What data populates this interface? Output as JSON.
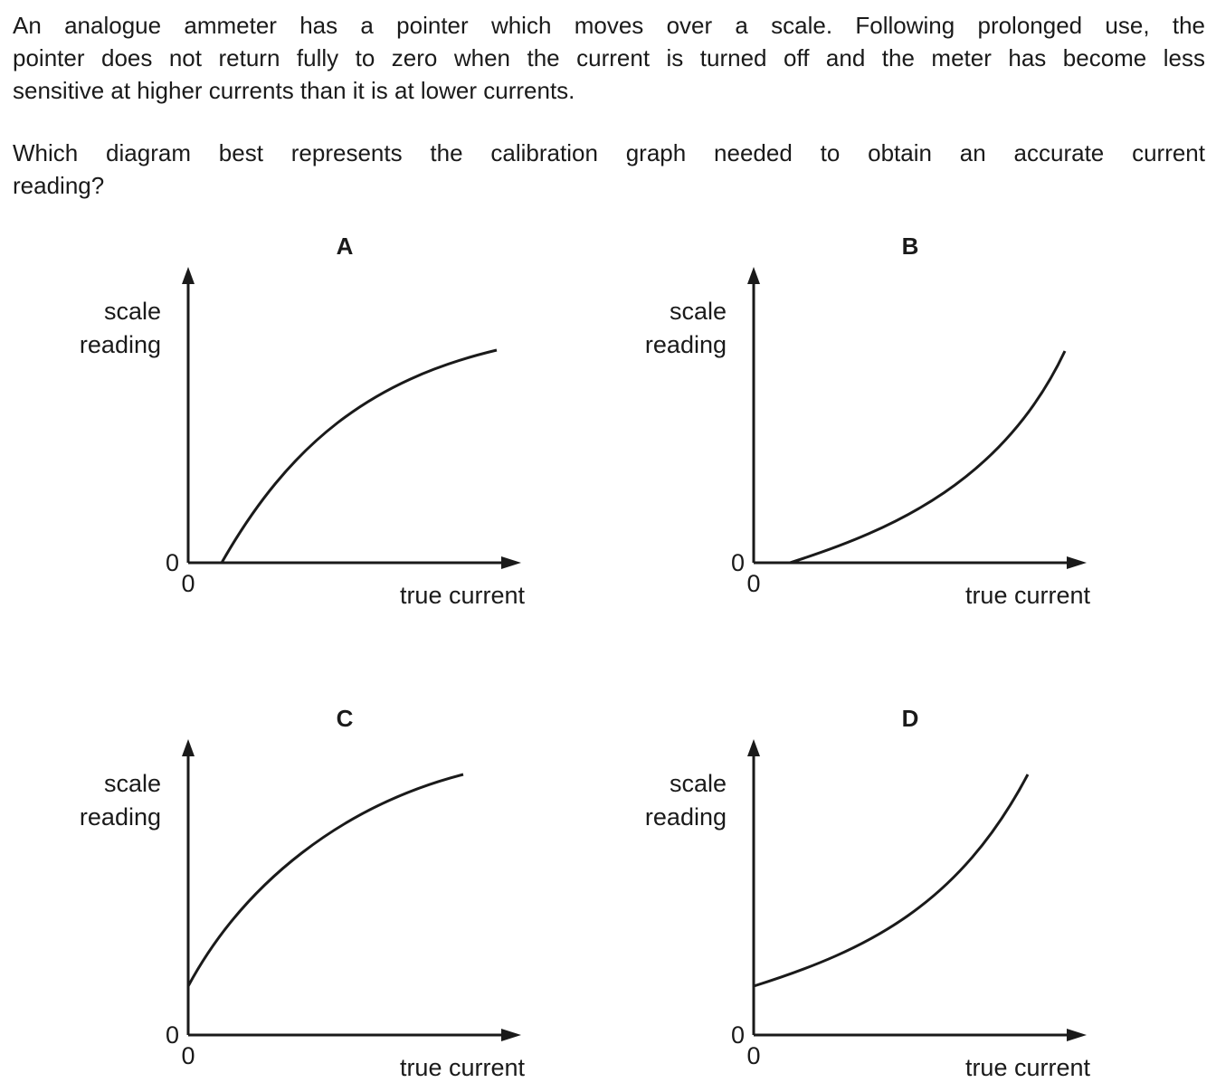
{
  "question": {
    "stem_lines": [
      "An analogue ammeter has a pointer which moves over a scale. Following prolonged use, the",
      "pointer does not return fully to zero when the current is turned off and the meter has become less",
      "sensitive at higher currents than it is at lower currents."
    ],
    "prompt_lines": [
      "Which diagram best represents the calibration graph needed to obtain an accurate current",
      "reading?"
    ]
  },
  "axes": {
    "y_label_line1": "scale",
    "y_label_line2": "reading",
    "x_label": "true current",
    "y_zero": "0",
    "x_zero": "0"
  },
  "options": [
    {
      "id": "A",
      "label": "A",
      "curve": "concave, starts on the x-axis at a positive true current"
    },
    {
      "id": "B",
      "label": "B",
      "curve": "convex, starts on the x-axis at a positive true current"
    },
    {
      "id": "C",
      "label": "C",
      "curve": "concave, starts on the y-axis at a positive scale reading"
    },
    {
      "id": "D",
      "label": "D",
      "curve": "convex, starts on the y-axis at a positive scale reading"
    }
  ],
  "colors": {
    "ink": "#1a1a1a",
    "background": "#ffffff"
  }
}
